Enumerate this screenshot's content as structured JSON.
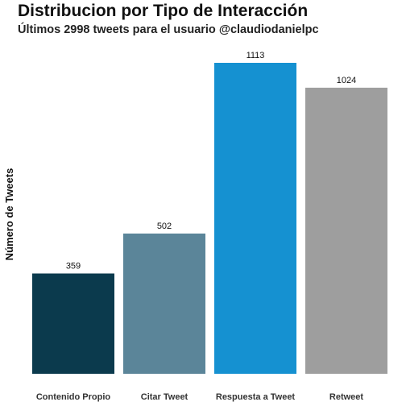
{
  "chart_data": {
    "type": "bar",
    "title": "Distribucion por Tipo de Interacción",
    "subtitle": "Últimos 2998 tweets para el usuario @claudiodanielpc",
    "xlabel": "",
    "ylabel": "Número de Tweets",
    "categories": [
      "Contenido Propio",
      "Citar Tweet",
      "Respuesta a Tweet",
      "Retweet"
    ],
    "values": [
      359,
      502,
      1113,
      1024
    ],
    "colors": [
      "#0b3a4d",
      "#5b8599",
      "#1591d1",
      "#9e9e9e"
    ],
    "ylim": [
      0,
      1113
    ],
    "grid": false,
    "legend": "none"
  }
}
